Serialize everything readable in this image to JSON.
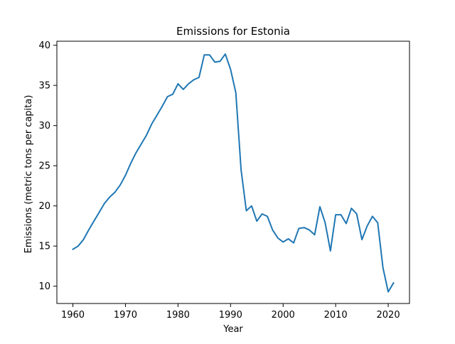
{
  "chart_data": {
    "type": "line",
    "title": "Emissions for Estonia",
    "xlabel": "Year",
    "ylabel": "Emissions (metric tons per capita)",
    "xlim": [
      1956.95,
      2024.05
    ],
    "ylim": [
      7.85,
      40.5
    ],
    "xticks": [
      1960,
      1970,
      1980,
      1990,
      2000,
      2010,
      2020
    ],
    "yticks": [
      10,
      15,
      20,
      25,
      30,
      35,
      40
    ],
    "grid": false,
    "line_color": "#1f77b4",
    "series": [
      {
        "x": [
          1960,
          1961,
          1962,
          1963,
          1964,
          1965,
          1966,
          1967,
          1968,
          1969,
          1970,
          1971,
          1972,
          1973,
          1974,
          1975,
          1976,
          1977,
          1978,
          1979,
          1980,
          1981,
          1982,
          1983,
          1984,
          1985,
          1986,
          1987,
          1988,
          1989,
          1990,
          1991,
          1992,
          1993,
          1994,
          1995,
          1996,
          1997,
          1998,
          1999,
          2000,
          2001,
          2002,
          2003,
          2004,
          2005,
          2006,
          2007,
          2008,
          2009,
          2010,
          2011,
          2012,
          2013,
          2014,
          2015,
          2016,
          2017,
          2018,
          2019,
          2020,
          2021
        ],
        "values": [
          14.6,
          15.0,
          15.8,
          17.0,
          18.1,
          19.2,
          20.3,
          21.1,
          21.7,
          22.6,
          23.8,
          25.3,
          26.6,
          27.7,
          28.8,
          30.2,
          31.3,
          32.4,
          33.6,
          33.9,
          35.2,
          34.5,
          35.2,
          35.7,
          36.0,
          38.8,
          38.8,
          37.9,
          38.0,
          38.9,
          37.0,
          34.1,
          24.5,
          19.4,
          20.0,
          18.1,
          19.0,
          18.7,
          17.0,
          16.0,
          15.5,
          15.9,
          15.4,
          17.2,
          17.3,
          17.0,
          16.4,
          19.9,
          17.9,
          14.4,
          18.9,
          18.9,
          17.8,
          19.7,
          19.0,
          15.8,
          17.5,
          18.7,
          17.9,
          12.3,
          9.3,
          10.4
        ]
      }
    ]
  }
}
